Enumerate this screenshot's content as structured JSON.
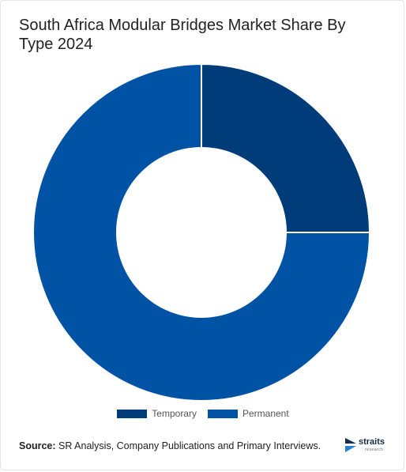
{
  "chart_data": {
    "type": "pie",
    "title": "South Africa Modular Bridges Market Share By Type 2024",
    "donut": true,
    "categories": [
      "Temporary",
      "Permanent"
    ],
    "values": [
      25,
      75
    ],
    "colors": [
      "#003c7a",
      "#0052a5"
    ],
    "legend_position": "bottom"
  },
  "source": {
    "label": "Source:",
    "text": " SR Analysis, Company Publications and Primary Interviews."
  },
  "logo": {
    "name": "straits",
    "sub": "research"
  }
}
